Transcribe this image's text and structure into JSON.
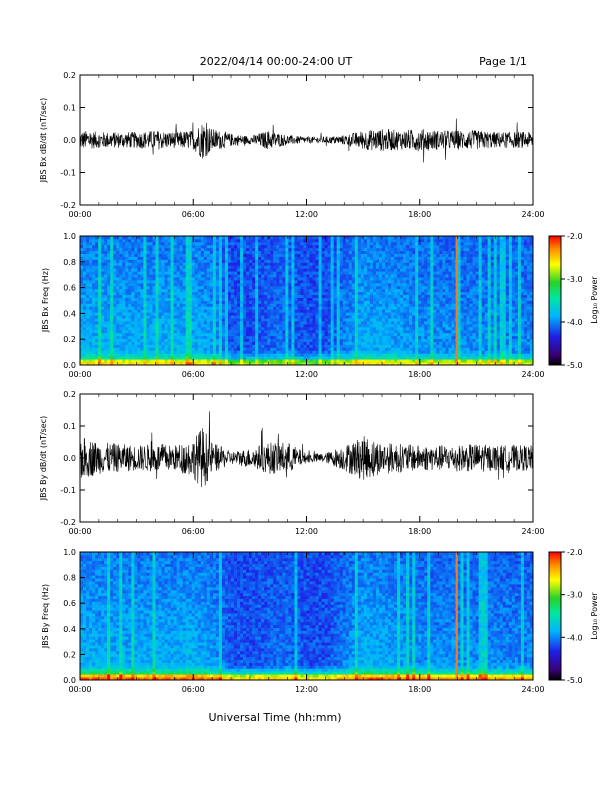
{
  "header": {
    "date_range": "2022/04/14  00:00-24:00 UT",
    "page": "Page 1/1"
  },
  "x_axis": {
    "label": "Universal Time (hh:mm)",
    "ticks": [
      "00:00",
      "06:00",
      "12:00",
      "18:00",
      "24:00"
    ],
    "range_hours": [
      0,
      24
    ]
  },
  "colorbar": {
    "label": "Log₁₀ Power",
    "ticks": [
      "-2.0",
      "-3.0",
      "-4.0",
      "-5.0"
    ],
    "range": [
      -5.0,
      -2.0
    ],
    "colormap": "rainbow (black-purple-blue-cyan-green-yellow-red)"
  },
  "colors": {
    "trace": "#000000",
    "spectrum_background": "#2c4fd6",
    "low_freq_band": "#31c76b",
    "event_line": "#f07a2b"
  },
  "chart_data": [
    {
      "type": "line",
      "panel": "JBS Bx dB/dt",
      "ylabel": "JBS Bx dB/dt (nT/sec)",
      "ylim": [
        -0.2,
        0.2
      ],
      "yticks": [
        "0.2",
        "0.1",
        "0.0",
        "-0.1",
        "-0.2"
      ],
      "x": [
        0,
        1,
        2,
        3,
        4,
        5,
        6,
        6.5,
        7,
        8,
        9,
        10,
        11,
        12,
        13,
        14,
        15,
        16,
        17,
        18,
        19,
        20,
        21,
        22,
        23,
        24
      ],
      "amplitude": [
        0.03,
        0.025,
        0.025,
        0.025,
        0.03,
        0.025,
        0.03,
        0.06,
        0.035,
        0.02,
        0.012,
        0.03,
        0.015,
        0.01,
        0.01,
        0.015,
        0.03,
        0.035,
        0.03,
        0.035,
        0.03,
        0.03,
        0.03,
        0.025,
        0.025,
        0.025
      ]
    },
    {
      "type": "heatmap",
      "panel": "JBS Bx Freq",
      "ylabel": "JBS Bx Freq (Hz)",
      "ylim": [
        0.0,
        1.0
      ],
      "yticks": [
        "1.0",
        "0.8",
        "0.6",
        "0.4",
        "0.2",
        "0.0"
      ],
      "note": "broadband quiet interval ~07:00-13:00 (dark), enhanced activity 00:00-07:00 and 14:00-24:00, narrowband line at ~20:00"
    },
    {
      "type": "line",
      "panel": "JBS By dB/dt",
      "ylabel": "JBS By dB/dt (nT/sec)",
      "ylim": [
        -0.2,
        0.2
      ],
      "yticks": [
        "0.2",
        "0.1",
        "0.0",
        "-0.1",
        "-0.2"
      ],
      "x": [
        0,
        1,
        2,
        3,
        4,
        5,
        6,
        6.5,
        7,
        8,
        9,
        10,
        11,
        12,
        13,
        14,
        15,
        16,
        17,
        18,
        19,
        20,
        21,
        22,
        23,
        24
      ],
      "amplitude": [
        0.07,
        0.05,
        0.045,
        0.04,
        0.045,
        0.04,
        0.06,
        0.1,
        0.05,
        0.02,
        0.03,
        0.05,
        0.05,
        0.015,
        0.015,
        0.04,
        0.07,
        0.05,
        0.045,
        0.04,
        0.04,
        0.04,
        0.045,
        0.04,
        0.04,
        0.04
      ]
    },
    {
      "type": "heatmap",
      "panel": "JBS By Freq",
      "ylabel": "JBS By Freq (Hz)",
      "ylim": [
        0.0,
        1.0
      ],
      "yticks": [
        "1.0",
        "0.8",
        "0.6",
        "0.4",
        "0.2",
        "0.0"
      ],
      "note": "similar structure to Bx spectrum with stronger low-frequency power"
    }
  ]
}
